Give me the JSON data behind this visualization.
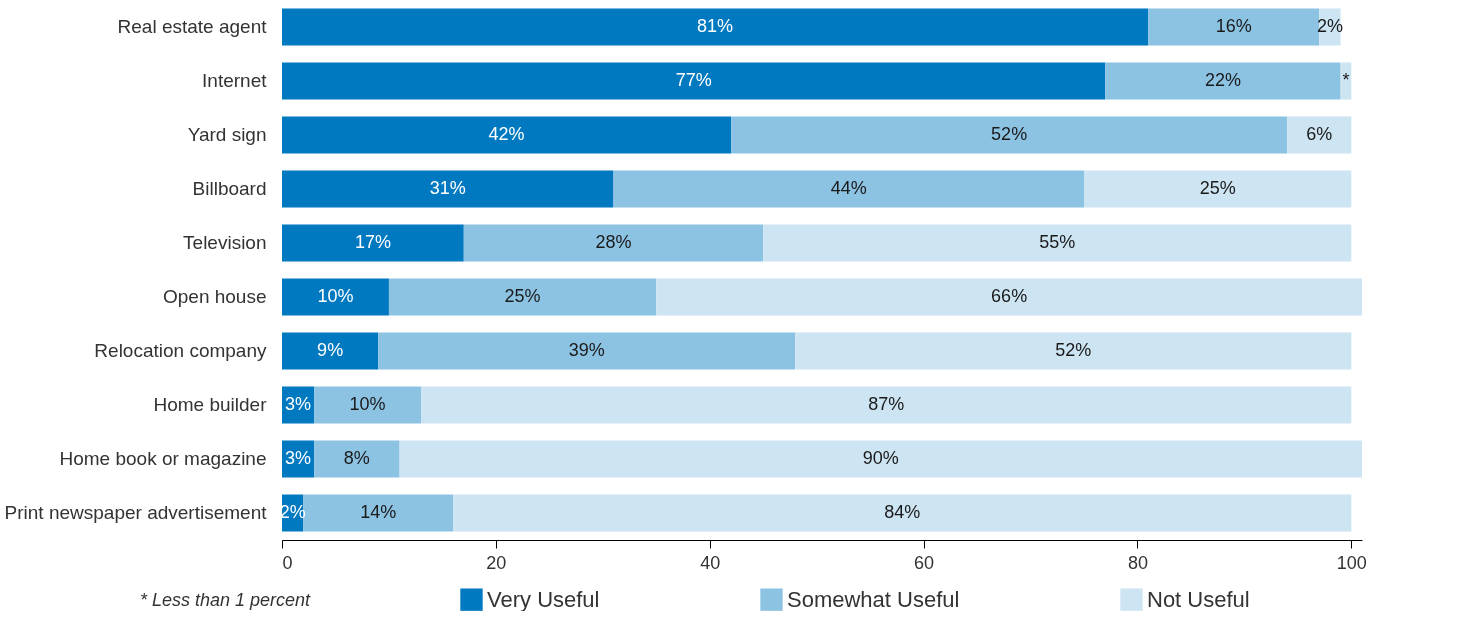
{
  "chart_data": {
    "type": "bar",
    "orientation": "horizontal",
    "stacked": true,
    "categories": [
      "Real estate agent",
      "Internet",
      "Yard sign",
      "Billboard",
      "Television",
      "Open house",
      "Relocation company",
      "Home builder",
      "Home book or magazine",
      "Print newspaper advertisement"
    ],
    "series": [
      {
        "name": "Very Useful",
        "color": "#0079c1",
        "values": [
          81,
          77,
          42,
          31,
          17,
          10,
          9,
          3,
          3,
          2
        ],
        "value_labels": [
          "81%",
          "77%",
          "42%",
          "31%",
          "17%",
          "10%",
          "9%",
          "3%",
          "3%",
          "2%"
        ]
      },
      {
        "name": "Somewhat Useful",
        "color": "#8cc3e3",
        "values": [
          16,
          22,
          52,
          44,
          28,
          25,
          39,
          10,
          8,
          14
        ],
        "value_labels": [
          "16%",
          "22%",
          "52%",
          "44%",
          "28%",
          "25%",
          "39%",
          "10%",
          "8%",
          "14%"
        ]
      },
      {
        "name": "Not Useful",
        "color": "#cde4f3",
        "values": [
          2,
          1,
          6,
          25,
          55,
          66,
          52,
          87,
          90,
          84
        ],
        "value_labels": [
          "2%",
          "*",
          "6%",
          "25%",
          "55%",
          "66%",
          "52%",
          "87%",
          "90%",
          "84%"
        ]
      }
    ],
    "xlim": [
      0,
      101
    ],
    "xticks": [
      0,
      20,
      40,
      60,
      80,
      100
    ],
    "grid": false,
    "legend": "bottom",
    "annotations": [
      "* Less than 1 percent"
    ]
  }
}
